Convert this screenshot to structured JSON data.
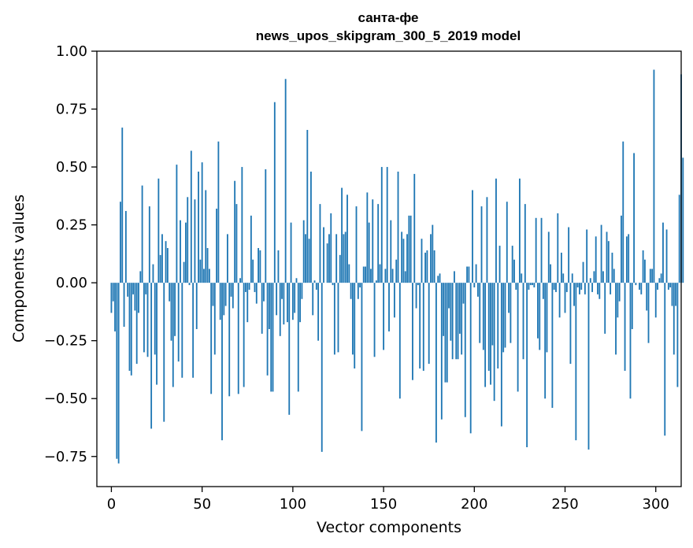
{
  "chart_data": {
    "type": "bar",
    "title_line1": "санта-фе",
    "title_line2": "news_upos_skipgram_300_5_2019 model",
    "xlabel": "Vector components",
    "ylabel": "Components values",
    "xlim": [
      -8,
      314
    ],
    "ylim": [
      -0.88,
      1.0
    ],
    "xticks": [
      0,
      50,
      100,
      150,
      200,
      250,
      300
    ],
    "xtick_labels": [
      "0",
      "50",
      "100",
      "150",
      "200",
      "250",
      "300"
    ],
    "yticks": [
      -0.75,
      -0.5,
      -0.25,
      0.0,
      0.25,
      0.5,
      0.75,
      1.0
    ],
    "ytick_labels": [
      "−0.75",
      "−0.50",
      "−0.25",
      "0.00",
      "0.25",
      "0.50",
      "0.75",
      "1.00"
    ],
    "bar_color": "#1f77b4",
    "grid": false,
    "values": [
      -0.13,
      -0.08,
      -0.21,
      -0.76,
      -0.78,
      0.35,
      0.67,
      -0.19,
      0.31,
      -0.06,
      -0.38,
      -0.4,
      -0.05,
      -0.12,
      -0.35,
      -0.13,
      0.05,
      0.42,
      -0.3,
      -0.05,
      -0.32,
      0.33,
      -0.63,
      0.08,
      -0.31,
      -0.44,
      0.45,
      0.12,
      0.21,
      -0.6,
      0.18,
      0.15,
      -0.08,
      -0.25,
      -0.45,
      -0.23,
      0.51,
      -0.34,
      0.27,
      -0.41,
      0.09,
      0.26,
      0.37,
      -0.01,
      0.57,
      -0.41,
      0.36,
      -0.2,
      0.48,
      0.1,
      0.52,
      0.06,
      0.4,
      0.15,
      0.06,
      -0.48,
      -0.1,
      -0.31,
      0.32,
      0.61,
      -0.16,
      -0.68,
      -0.14,
      -0.1,
      0.21,
      -0.49,
      -0.06,
      -0.11,
      0.44,
      0.34,
      -0.48,
      0.02,
      0.5,
      -0.45,
      -0.04,
      -0.17,
      -0.03,
      0.29,
      0.1,
      -0.04,
      -0.09,
      0.15,
      0.14,
      -0.22,
      -0.08,
      0.49,
      -0.4,
      -0.2,
      -0.47,
      -0.47,
      0.78,
      -0.14,
      0.14,
      -0.23,
      -0.07,
      -0.18,
      0.88,
      -0.17,
      -0.57,
      0.26,
      -0.16,
      -0.13,
      0.02,
      -0.47,
      -0.17,
      -0.07,
      0.27,
      0.21,
      0.66,
      0.19,
      0.48,
      -0.14,
      0.01,
      -0.03,
      -0.25,
      0.34,
      -0.73,
      0.24,
      0.0,
      0.17,
      0.21,
      0.3,
      -0.01,
      -0.31,
      0.21,
      -0.3,
      0.12,
      0.41,
      0.21,
      0.22,
      0.38,
      0.08,
      -0.07,
      -0.31,
      -0.37,
      0.33,
      -0.07,
      -0.02,
      -0.64,
      0.07,
      0.07,
      0.39,
      0.26,
      0.06,
      0.36,
      -0.32,
      0.01,
      0.34,
      0.08,
      0.5,
      -0.29,
      0.06,
      0.5,
      -0.21,
      0.27,
      0.06,
      -0.15,
      0.1,
      0.48,
      -0.5,
      0.22,
      0.19,
      0.05,
      0.21,
      0.29,
      0.29,
      -0.42,
      0.47,
      -0.11,
      -0.01,
      -0.37,
      0.19,
      -0.38,
      0.13,
      0.14,
      -0.35,
      0.21,
      0.25,
      0.14,
      -0.69,
      0.03,
      0.04,
      -0.59,
      -0.23,
      -0.43,
      -0.43,
      -0.11,
      -0.25,
      -0.33,
      0.05,
      -0.33,
      -0.33,
      -0.22,
      -0.31,
      -0.09,
      -0.58,
      0.07,
      0.07,
      -0.65,
      0.4,
      -0.02,
      0.08,
      -0.06,
      -0.26,
      0.33,
      -0.29,
      -0.45,
      0.37,
      -0.38,
      -0.44,
      -0.27,
      -0.51,
      0.45,
      -0.37,
      0.16,
      -0.62,
      -0.3,
      -0.28,
      0.35,
      -0.13,
      -0.26,
      0.16,
      0.1,
      -0.03,
      -0.47,
      0.45,
      0.04,
      -0.33,
      0.34,
      -0.71,
      -0.03,
      -0.01,
      -0.01,
      -0.02,
      0.28,
      -0.24,
      -0.29,
      0.28,
      -0.07,
      -0.5,
      -0.3,
      0.22,
      0.08,
      -0.54,
      -0.03,
      -0.04,
      0.3,
      -0.15,
      0.13,
      0.04,
      -0.13,
      -0.04,
      0.24,
      -0.35,
      0.04,
      -0.1,
      -0.68,
      -0.02,
      -0.05,
      -0.03,
      0.09,
      -0.05,
      0.23,
      -0.72,
      0.02,
      -0.04,
      0.05,
      0.2,
      -0.05,
      -0.07,
      0.25,
      0.05,
      -0.22,
      0.22,
      0.18,
      -0.05,
      0.13,
      0.06,
      -0.31,
      -0.15,
      -0.08,
      0.29,
      0.61,
      -0.38,
      0.2,
      0.21,
      -0.5,
      -0.2,
      0.56,
      -0.01,
      0.0,
      -0.03,
      -0.05,
      0.14,
      0.1,
      -0.12,
      -0.26,
      0.06,
      0.06,
      0.92,
      -0.15,
      -0.03,
      0.02,
      0.04,
      0.26,
      -0.66,
      0.23,
      -0.03,
      -0.02,
      -0.1,
      -0.31,
      -0.1,
      -0.45,
      0.38,
      0.9,
      0.54
    ]
  }
}
